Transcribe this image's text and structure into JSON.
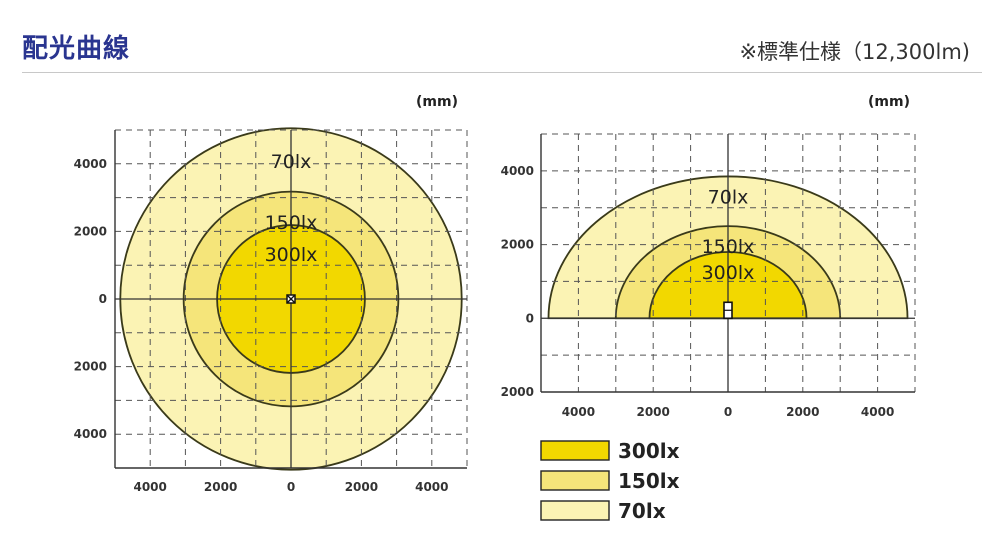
{
  "header": {
    "title": "配光曲線",
    "spec_note": "※標準仕様（12,300lm)"
  },
  "colors": {
    "level_300": "#f2d800",
    "level_150": "#f5e57a",
    "level_70": "#fbf3b4",
    "contour": "#3a3a1a",
    "title": "#2a3590"
  },
  "chart_data": [
    {
      "type": "contour",
      "view": "plan",
      "unit": "(mm)",
      "xlim": [
        -5000,
        5000
      ],
      "ylim": [
        -5000,
        5000
      ],
      "x_ticks": [
        -4000,
        -2000,
        0,
        2000,
        4000
      ],
      "x_tick_labels": [
        "4000",
        "2000",
        "0",
        "2000",
        "4000"
      ],
      "y_ticks": [
        4000,
        2000,
        0,
        -2000,
        -4000
      ],
      "y_tick_labels": [
        "4000",
        "2000",
        "0",
        "2000",
        "4000"
      ],
      "grid": true,
      "levels": [
        {
          "label": "70lx",
          "radius": 4850
        },
        {
          "label": "150lx",
          "radius": 3050
        },
        {
          "label": "300lx",
          "radius": 2100
        }
      ]
    },
    {
      "type": "contour",
      "view": "elevation",
      "unit": "(mm)",
      "xlim": [
        -5000,
        5000
      ],
      "ylim": [
        -2000,
        5000
      ],
      "x_ticks": [
        -4000,
        -2000,
        0,
        2000,
        4000
      ],
      "x_tick_labels": [
        "4000",
        "2000",
        "0",
        "2000",
        "4000"
      ],
      "y_ticks": [
        4000,
        2000,
        0,
        -2000
      ],
      "y_tick_labels": [
        "4000",
        "2000",
        "0",
        "2000"
      ],
      "grid": true,
      "levels": [
        {
          "label": "70lx",
          "half_width": 4800,
          "height": 3850
        },
        {
          "label": "150lx",
          "half_width": 3000,
          "height": 2500
        },
        {
          "label": "300lx",
          "half_width": 2100,
          "height": 1800
        }
      ]
    }
  ],
  "legend": {
    "items": [
      {
        "label": "300lx",
        "color_key": "level_300"
      },
      {
        "label": "150lx",
        "color_key": "level_150"
      },
      {
        "label": "70lx",
        "color_key": "level_70"
      }
    ]
  }
}
